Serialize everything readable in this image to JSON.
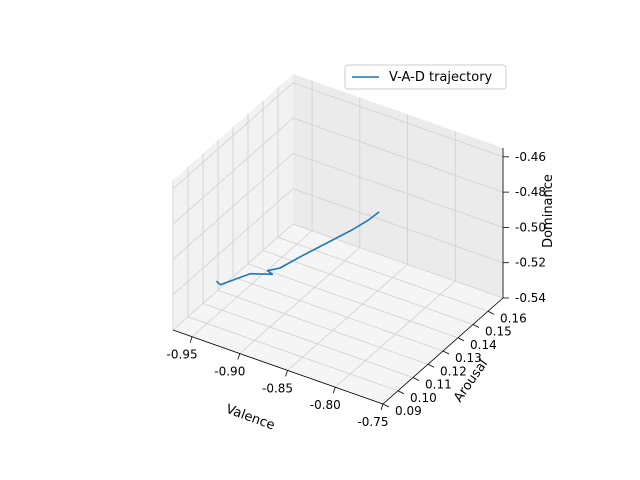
{
  "chart_data": {
    "type": "line3d",
    "title": "",
    "xlabel": "Valence",
    "ylabel": "Arousal",
    "zlabel": "Dominance",
    "xlim": [
      -0.97,
      -0.75
    ],
    "ylim": [
      0.09,
      0.17
    ],
    "zlim": [
      -0.54,
      -0.455
    ],
    "xticks": [
      "-0.95",
      "-0.90",
      "-0.85",
      "-0.80",
      "-0.75"
    ],
    "yticks": [
      "0.09",
      "0.10",
      "0.11",
      "0.12",
      "0.13",
      "0.14",
      "0.15",
      "0.16"
    ],
    "zticks": [
      "-0.54",
      "-0.52",
      "-0.50",
      "-0.48",
      "-0.46"
    ],
    "grid": true,
    "legend_position": "top-right",
    "series": [
      {
        "name": "V-A-D trajectory",
        "color": "#1f77b4",
        "points": [
          {
            "x": -0.96,
            "y": 0.113,
            "z": -0.528
          },
          {
            "x": -0.955,
            "y": 0.112,
            "z": -0.528
          },
          {
            "x": -0.93,
            "y": 0.116,
            "z": -0.52
          },
          {
            "x": -0.91,
            "y": 0.118,
            "z": -0.518
          },
          {
            "x": -0.918,
            "y": 0.12,
            "z": -0.519
          },
          {
            "x": -0.905,
            "y": 0.12,
            "z": -0.515
          },
          {
            "x": -0.892,
            "y": 0.125,
            "z": -0.51
          },
          {
            "x": -0.858,
            "y": 0.138,
            "z": -0.498
          },
          {
            "x": -0.845,
            "y": 0.141,
            "z": -0.492
          },
          {
            "x": -0.838,
            "y": 0.143,
            "z": -0.488
          }
        ]
      }
    ]
  }
}
